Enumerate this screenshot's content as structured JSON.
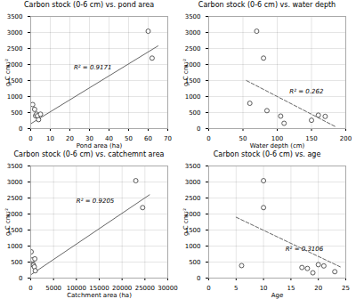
{
  "chart_data": [
    {
      "type": "scatter",
      "title": "Carbon stock (0-6 cm) vs. pond area",
      "xlabel": "Pond area (ha)",
      "ylabel": "g C cm⁻²",
      "x": [
        1,
        2,
        2.5,
        3,
        3.5,
        4,
        5,
        60,
        62
      ],
      "values": [
        750,
        600,
        400,
        450,
        400,
        280,
        450,
        3040,
        2200
      ],
      "color": "#333333",
      "marker": "circle",
      "trend": {
        "x": [
          0,
          65
        ],
        "values": [
          150,
          2580
        ],
        "line_style": "solid",
        "color": "#666666"
      },
      "annotations": [
        {
          "text": "R² = 0.9171",
          "x": 22,
          "y": 1900
        }
      ],
      "xlim": [
        0,
        70
      ],
      "ylim": [
        0,
        3500
      ],
      "xticks": [
        0,
        10,
        20,
        30,
        40,
        50,
        60,
        70
      ],
      "yticks": [
        0,
        500,
        1000,
        1500,
        2000,
        2500,
        3000,
        3500
      ],
      "grid": true
    },
    {
      "type": "scatter",
      "title": "Carbon stock (0-6 cm) vs. water depth",
      "xlabel": "Water depth (cm)",
      "ylabel": "g C cm⁻²",
      "x": [
        60,
        70,
        80,
        85,
        105,
        110,
        150,
        160,
        170
      ],
      "values": [
        790,
        3040,
        2200,
        560,
        390,
        165,
        260,
        420,
        380
      ],
      "color": "#333333",
      "marker": "circle",
      "trend": {
        "x": [
          55,
          185
        ],
        "values": [
          1500,
          60
        ],
        "line_style": "dashed",
        "color": "#666666"
      },
      "annotations": [
        {
          "text": "R² = 0.262",
          "x": 118,
          "y": 1150
        }
      ],
      "xlim": [
        0,
        200
      ],
      "ylim": [
        0,
        3500
      ],
      "xticks": [
        0,
        50,
        100,
        150,
        200
      ],
      "yticks": [
        0,
        500,
        1000,
        1500,
        2000,
        2500,
        3000,
        3500
      ],
      "grid": true
    },
    {
      "type": "scatter",
      "title": "Carbon stock (0-6 cm) vs. catchemnt area",
      "xlabel": "Catchment area (ha)",
      "ylabel": "g C cm⁻²",
      "x": [
        100,
        400,
        500,
        600,
        800,
        900,
        1000,
        23000,
        24500
      ],
      "values": [
        820,
        570,
        430,
        400,
        350,
        600,
        230,
        3040,
        2200
      ],
      "color": "#333333",
      "marker": "circle",
      "trend": {
        "x": [
          0,
          26000
        ],
        "values": [
          100,
          2600
        ],
        "line_style": "solid",
        "color": "#666666"
      },
      "annotations": [
        {
          "text": "R² = 0.9205",
          "x": 10000,
          "y": 2400
        }
      ],
      "xlim": [
        0,
        30000
      ],
      "ylim": [
        0,
        3500
      ],
      "xticks": [
        0,
        5000,
        10000,
        15000,
        20000,
        25000,
        30000
      ],
      "yticks": [
        0,
        500,
        1000,
        1500,
        2000,
        2500,
        3000,
        3500
      ],
      "grid": true
    },
    {
      "type": "scatter",
      "title": "Carbon stock (0-6 cm) vs. age",
      "xlabel": "Age",
      "ylabel": "g C cm⁻²",
      "x": [
        6,
        10,
        10,
        17,
        18,
        19,
        20,
        21,
        23
      ],
      "values": [
        390,
        3040,
        2200,
        330,
        300,
        165,
        420,
        380,
        200
      ],
      "color": "#333333",
      "marker": "circle",
      "trend": {
        "x": [
          5,
          24
        ],
        "values": [
          1900,
          350
        ],
        "line_style": "dashed",
        "color": "#666666"
      },
      "annotations": [
        {
          "text": "R² = 0.3106",
          "x": 14,
          "y": 900
        }
      ],
      "xlim": [
        0,
        25
      ],
      "ylim": [
        0,
        3500
      ],
      "xticks": [
        0,
        5,
        10,
        15,
        20,
        25
      ],
      "yticks": [
        0,
        500,
        1000,
        1500,
        2000,
        2500,
        3000,
        3500
      ],
      "grid": true
    }
  ]
}
